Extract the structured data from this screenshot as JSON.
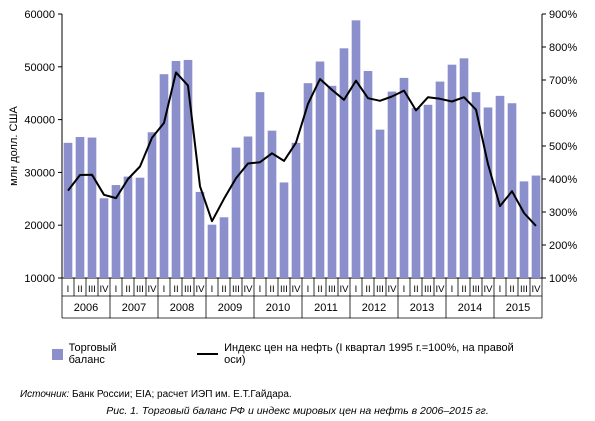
{
  "chart_data": {
    "type": "bar",
    "ylabel": "млн долл. США",
    "ylim": [
      10000,
      60000
    ],
    "yticks": [
      "10000",
      "20000",
      "30000",
      "40000",
      "50000",
      "60000"
    ],
    "y2lim": [
      100,
      900
    ],
    "y2ticks": [
      "100%",
      "200%",
      "300%",
      "400%",
      "500%",
      "600%",
      "700%",
      "800%",
      "900%"
    ],
    "quarters": [
      "I",
      "II",
      "III",
      "IV",
      "I",
      "II",
      "III",
      "IV",
      "I",
      "II",
      "III",
      "IV",
      "I",
      "II",
      "III",
      "IV",
      "I",
      "II",
      "III",
      "IV",
      "I",
      "II",
      "III",
      "IV",
      "I",
      "II",
      "III",
      "IV",
      "I",
      "II",
      "III",
      "IV",
      "I",
      "II",
      "III",
      "IV",
      "I",
      "II",
      "III",
      "IV"
    ],
    "years": [
      "2006",
      "2007",
      "2008",
      "2009",
      "2010",
      "2011",
      "2012",
      "2013",
      "2014",
      "2015"
    ],
    "series": [
      {
        "name": "Торговый баланс",
        "kind": "bar",
        "color": "#8b8fcb",
        "values": [
          35600,
          36700,
          36600,
          25100,
          27600,
          29200,
          29000,
          37600,
          48600,
          51100,
          51300,
          26300,
          20100,
          21500,
          34700,
          36800,
          45200,
          37900,
          28100,
          35600,
          46900,
          51000,
          46400,
          53500,
          58800,
          49200,
          38100,
          45300,
          47900,
          42200,
          42800,
          47200,
          50400,
          51600,
          45200,
          42300,
          44500,
          43100,
          28300,
          29400
        ]
      },
      {
        "name": "Индекс цен на нефть (I квартал 1995 г.=100%, на правой оси)",
        "kind": "line",
        "axis": "right",
        "color": "#000000",
        "values": [
          365,
          412,
          413,
          352,
          342,
          400,
          438,
          525,
          570,
          723,
          683,
          378,
          272,
          340,
          402,
          447,
          451,
          478,
          455,
          510,
          628,
          703,
          670,
          640,
          698,
          645,
          637,
          650,
          668,
          608,
          648,
          643,
          635,
          648,
          610,
          445,
          318,
          363,
          297,
          258
        ]
      }
    ]
  },
  "legend": {
    "bar_label": "Торговый баланс",
    "line_label": "Индекс цен на нефть (I квартал 1995 г.=100%, на правой оси)"
  },
  "source": {
    "prefix": "Источник:",
    "text": " Банк России; EIA; расчет ИЭП им. Е.Т.Гайдара."
  },
  "caption": "Рис. 1. Торговый баланс РФ и индекс мировых цен на нефть в 2006–2015 гг."
}
